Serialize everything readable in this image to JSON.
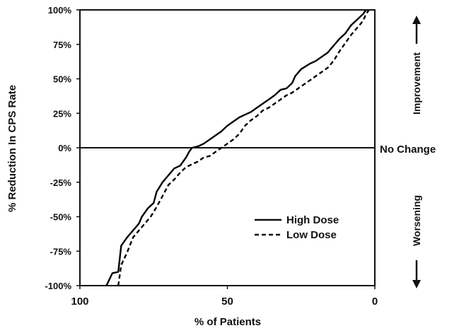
{
  "chart_data": {
    "type": "line",
    "xlabel": "% of Patients",
    "ylabel": "% Reduction In CPS Rate",
    "xlim": [
      100,
      0
    ],
    "ylim": [
      -100,
      100
    ],
    "x_ticks": [
      "100",
      "50",
      "0"
    ],
    "x_tick_values": [
      100,
      50,
      0
    ],
    "y_ticks": [
      "100%",
      "75%",
      "50%",
      "25%",
      "0%",
      "-25%",
      "-50%",
      "-75%",
      "-100%"
    ],
    "y_tick_values": [
      100,
      75,
      50,
      25,
      0,
      -25,
      -50,
      -75,
      -100
    ],
    "reference_line": {
      "y": 0,
      "label": "No Change"
    },
    "side_labels": {
      "top": "Improvement",
      "bottom": "Worsening"
    },
    "legend": {
      "position": "lower-right",
      "entries": [
        "High Dose",
        "Low Dose"
      ]
    },
    "series": [
      {
        "name": "High Dose",
        "style": "solid",
        "color": "#000000",
        "points": [
          [
            91,
            -100
          ],
          [
            89,
            -91
          ],
          [
            87,
            -90
          ],
          [
            86,
            -71
          ],
          [
            84,
            -65
          ],
          [
            82,
            -60
          ],
          [
            80,
            -55
          ],
          [
            79,
            -50
          ],
          [
            77,
            -44
          ],
          [
            75,
            -40
          ],
          [
            74,
            -32
          ],
          [
            72,
            -25
          ],
          [
            70,
            -20
          ],
          [
            68,
            -15
          ],
          [
            66,
            -13
          ],
          [
            64,
            -7
          ],
          [
            63,
            -3
          ],
          [
            62,
            0
          ],
          [
            60,
            1
          ],
          [
            58,
            3
          ],
          [
            56,
            6
          ],
          [
            54,
            9
          ],
          [
            52,
            12
          ],
          [
            50,
            16
          ],
          [
            48,
            19
          ],
          [
            46,
            22
          ],
          [
            44,
            24
          ],
          [
            42,
            26
          ],
          [
            40,
            29
          ],
          [
            38,
            32
          ],
          [
            36,
            35
          ],
          [
            34,
            38
          ],
          [
            32,
            42
          ],
          [
            30,
            43
          ],
          [
            28,
            47
          ],
          [
            27,
            52
          ],
          [
            25,
            57
          ],
          [
            22,
            61
          ],
          [
            20,
            63
          ],
          [
            18,
            66
          ],
          [
            16,
            69
          ],
          [
            14,
            74
          ],
          [
            12,
            79
          ],
          [
            10,
            83
          ],
          [
            8,
            89
          ],
          [
            6,
            93
          ],
          [
            4,
            97
          ],
          [
            3,
            100
          ]
        ]
      },
      {
        "name": "Low Dose",
        "style": "dashed",
        "color": "#000000",
        "points": [
          [
            87,
            -100
          ],
          [
            86,
            -85
          ],
          [
            84,
            -76
          ],
          [
            82,
            -65
          ],
          [
            80,
            -60
          ],
          [
            78,
            -55
          ],
          [
            76,
            -50
          ],
          [
            74,
            -43
          ],
          [
            72,
            -35
          ],
          [
            70,
            -27
          ],
          [
            68,
            -23
          ],
          [
            66,
            -18
          ],
          [
            64,
            -14
          ],
          [
            62,
            -12
          ],
          [
            60,
            -10
          ],
          [
            58,
            -7
          ],
          [
            56,
            -6
          ],
          [
            54,
            -3
          ],
          [
            52,
            0
          ],
          [
            50,
            3
          ],
          [
            48,
            6
          ],
          [
            46,
            10
          ],
          [
            44,
            16
          ],
          [
            42,
            20
          ],
          [
            40,
            23
          ],
          [
            38,
            27
          ],
          [
            36,
            29
          ],
          [
            34,
            32
          ],
          [
            32,
            35
          ],
          [
            30,
            38
          ],
          [
            28,
            40
          ],
          [
            26,
            43
          ],
          [
            24,
            46
          ],
          [
            22,
            49
          ],
          [
            20,
            52
          ],
          [
            18,
            55
          ],
          [
            16,
            58
          ],
          [
            14,
            63
          ],
          [
            12,
            70
          ],
          [
            10,
            76
          ],
          [
            8,
            82
          ],
          [
            6,
            87
          ],
          [
            4,
            92
          ],
          [
            3,
            97
          ],
          [
            2,
            100
          ]
        ]
      }
    ]
  }
}
